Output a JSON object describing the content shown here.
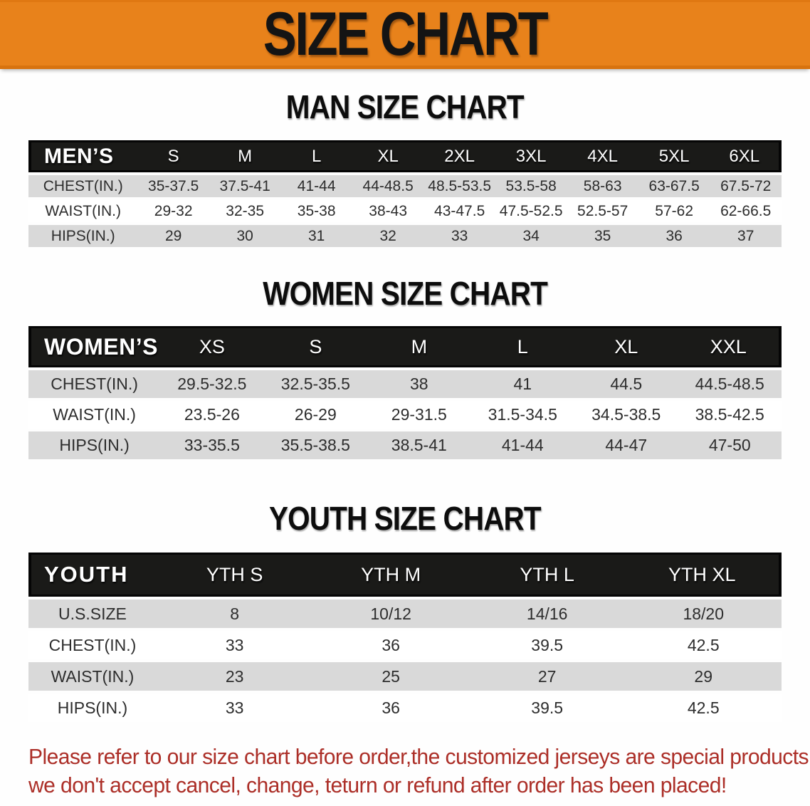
{
  "banner": {
    "title": "SIZE CHART"
  },
  "colors": {
    "accent_orange": "#E8821B",
    "header_black": "#1A1A18",
    "row_gray": "#D9D9D9",
    "disclaimer_red": "#AC2F28"
  },
  "men": {
    "heading": "MAN SIZE CHART",
    "table": {
      "corner_label": "MEN’S",
      "columns": [
        "S",
        "M",
        "L",
        "XL",
        "2XL",
        "3XL",
        "4XL",
        "5XL",
        "6XL"
      ],
      "rows": [
        {
          "label": "CHEST(IN.)",
          "values": [
            "35-37.5",
            "37.5-41",
            "41-44",
            "44-48.5",
            "48.5-53.5",
            "53.5-58",
            "58-63",
            "63-67.5",
            "67.5-72"
          ]
        },
        {
          "label": "WAIST(IN.)",
          "values": [
            "29-32",
            "32-35",
            "35-38",
            "38-43",
            "43-47.5",
            "47.5-52.5",
            "52.5-57",
            "57-62",
            "62-66.5"
          ]
        },
        {
          "label": "HIPS(IN.)",
          "values": [
            "29",
            "30",
            "31",
            "32",
            "33",
            "34",
            "35",
            "36",
            "37"
          ]
        }
      ]
    }
  },
  "women": {
    "heading": "WOMEN SIZE CHART",
    "table": {
      "corner_label": "WOMEN’S",
      "columns": [
        "XS",
        "S",
        "M",
        "L",
        "XL",
        "XXL"
      ],
      "rows": [
        {
          "label": "CHEST(IN.)",
          "values": [
            "29.5-32.5",
            "32.5-35.5",
            "38",
            "41",
            "44.5",
            "44.5-48.5"
          ]
        },
        {
          "label": "WAIST(IN.)",
          "values": [
            "23.5-26",
            "26-29",
            "29-31.5",
            "31.5-34.5",
            "34.5-38.5",
            "38.5-42.5"
          ]
        },
        {
          "label": "HIPS(IN.)",
          "values": [
            "33-35.5",
            "35.5-38.5",
            "38.5-41",
            "41-44",
            "44-47",
            "47-50"
          ]
        }
      ]
    }
  },
  "youth": {
    "heading": "YOUTH SIZE CHART",
    "table": {
      "corner_label": "YOUTH",
      "columns": [
        "YTH S",
        "YTH M",
        "YTH L",
        "YTH XL"
      ],
      "rows": [
        {
          "label": "U.S.SIZE",
          "values": [
            "8",
            "10/12",
            "14/16",
            "18/20"
          ]
        },
        {
          "label": "CHEST(IN.)",
          "values": [
            "33",
            "36",
            "39.5",
            "42.5"
          ]
        },
        {
          "label": "WAIST(IN.)",
          "values": [
            "23",
            "25",
            "27",
            "29"
          ]
        },
        {
          "label": "HIPS(IN.)",
          "values": [
            "33",
            "36",
            "39.5",
            "42.5"
          ]
        }
      ]
    }
  },
  "disclaimer": {
    "line1": "Please refer to our size chart before order,the customized jerseys are special products,",
    "line2": "we don't accept cancel, change, teturn or refund after order has been placed!"
  }
}
